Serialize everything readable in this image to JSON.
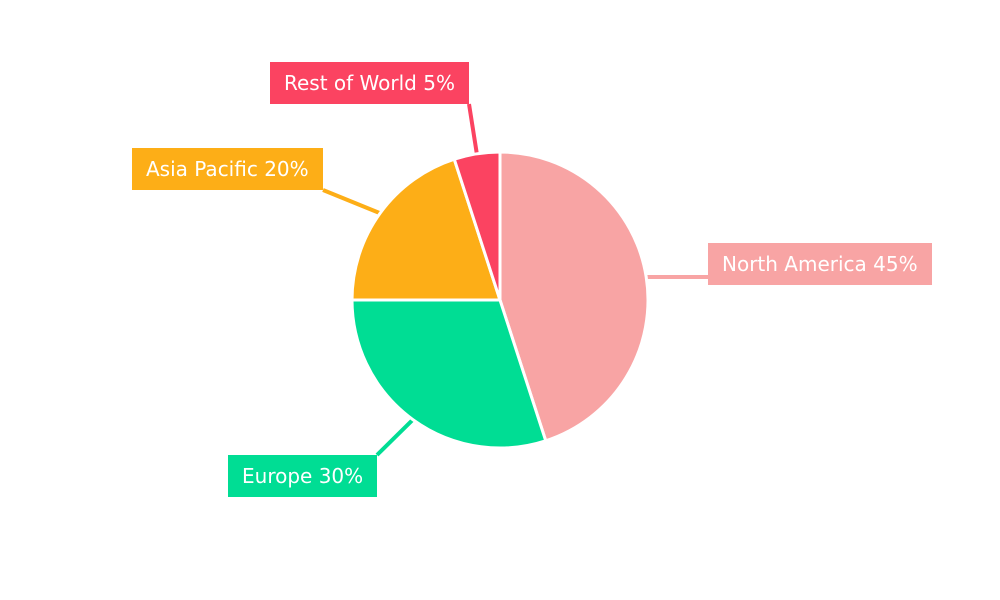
{
  "chart_data": {
    "type": "pie",
    "direction": "clockwise",
    "start_angle_deg": 0,
    "background": "#ffffff",
    "separator_color": "#ffffff",
    "label_text_color": "#ffffff",
    "legend": "none",
    "slices": [
      {
        "name": "North America",
        "value": 45,
        "label_text": "North America 45%",
        "color": "#F8A4A4"
      },
      {
        "name": "Europe",
        "value": 30,
        "label_text": "Europe 30%",
        "color": "#00DD94"
      },
      {
        "name": "Asia Pacific",
        "value": 20,
        "label_text": "Asia Pacific 20%",
        "color": "#FDAE17"
      },
      {
        "name": "Rest of World",
        "value": 5,
        "label_text": "Rest of World 5%",
        "color": "#FB4361"
      }
    ]
  }
}
